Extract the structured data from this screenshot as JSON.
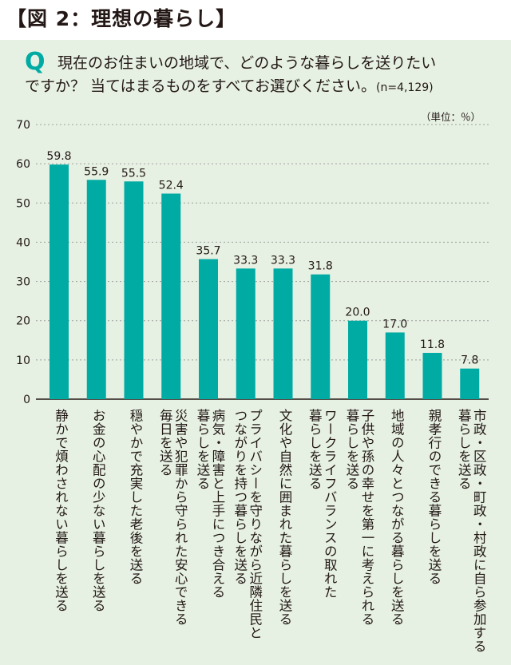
{
  "header": "【図 2：理想の暮らし】",
  "question": {
    "mark": "Q",
    "line1": "現在のお住まいの地域で、どのような暮らしを送りたい",
    "line2": "ですか？ 当てはまるものをすべてお選びください。",
    "n": "(n=4,129)"
  },
  "unit": "（単位：％）",
  "colors": {
    "bar": "#00aba4",
    "panel": "#e6f1e3",
    "grid": "#9e9e9e",
    "text": "#231815"
  },
  "chart_data": {
    "type": "bar",
    "ylim": [
      0,
      70
    ],
    "yticks": [
      "0",
      "10",
      "20",
      "30",
      "40",
      "50",
      "60",
      "70"
    ],
    "grid": true,
    "categories": [
      "静かで煩わされない暮らしを送る",
      "お金の心配の少ない暮らしを送る",
      "穏やかで充実した老後を送る",
      "災害や犯罪から守られた安心できる毎日を送る",
      "病気・障害と上手につき合える暮らしを送る",
      "プライバシーを守りながら近隣住民とつながりを持つ暮らしを送る",
      "文化や自然に囲まれた暮らしを送る",
      "ワークライフバランスの取れた暮らしを送る",
      "子供や孫の幸せを第一に考えられる暮らしを送る",
      "地域の人々とつながる暮らしを送る",
      "親孝行のできる暮らしを送る",
      "市政・区政・町政・村政に自ら参加する暮らしを送る"
    ],
    "category_lines": [
      [
        "静かで煩わされない暮らしを送る"
      ],
      [
        "お金の心配の少ない暮らしを送る"
      ],
      [
        "穏やかで充実した老後を送る"
      ],
      [
        "災害や犯罪から守られた安心できる",
        "毎日を送る"
      ],
      [
        "病気・障害と上手につき合える",
        "暮らしを送る"
      ],
      [
        "プライバシーを守りながら近隣住民と",
        "つながりを持つ暮らしを送る"
      ],
      [
        "文化や自然に囲まれた暮らしを送る"
      ],
      [
        "ワークライフバランスの取れた",
        "暮らしを送る"
      ],
      [
        "子供や孫の幸せを第一に考えられる",
        "暮らしを送る"
      ],
      [
        "地域の人々とつながる暮らしを送る"
      ],
      [
        "親孝行のできる暮らしを送る"
      ],
      [
        "市政・区政・町政・村政に自ら参加する",
        "暮らしを送る"
      ]
    ],
    "values": [
      59.8,
      55.9,
      55.5,
      52.4,
      35.7,
      33.3,
      33.3,
      31.8,
      20.0,
      17.0,
      11.8,
      7.8
    ],
    "value_labels": [
      "59.8",
      "55.9",
      "55.5",
      "52.4",
      "35.7",
      "33.3",
      "33.3",
      "31.8",
      "20.0",
      "17.0",
      "11.8",
      "7.8"
    ]
  }
}
